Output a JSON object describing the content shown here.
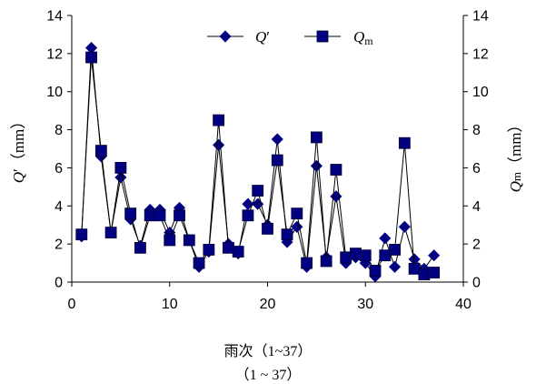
{
  "chart_data": {
    "type": "line",
    "x": [
      1,
      2,
      3,
      4,
      5,
      6,
      7,
      8,
      9,
      10,
      11,
      12,
      13,
      14,
      15,
      16,
      17,
      18,
      19,
      20,
      21,
      22,
      23,
      24,
      25,
      26,
      27,
      28,
      29,
      30,
      31,
      32,
      33,
      34,
      35,
      36,
      37
    ],
    "series": [
      {
        "name_prefix": "Q",
        "name_suffix": "′",
        "marker": "diamond",
        "values": [
          2.4,
          12.3,
          6.6,
          2.6,
          5.5,
          3.3,
          1.9,
          3.8,
          3.8,
          2.6,
          3.9,
          2.2,
          0.8,
          1.6,
          7.2,
          2.0,
          1.5,
          4.1,
          4.1,
          3.0,
          7.5,
          2.1,
          2.9,
          0.8,
          6.1,
          1.3,
          4.5,
          1.0,
          1.3,
          1.0,
          0.3,
          2.3,
          0.8,
          2.9,
          1.2,
          0.7,
          1.4
        ]
      },
      {
        "name_prefix": "Q",
        "name_suffix": "m",
        "marker": "square",
        "values": [
          2.5,
          11.8,
          6.9,
          2.6,
          6.0,
          3.6,
          1.8,
          3.5,
          3.5,
          2.2,
          3.5,
          2.2,
          1.0,
          1.7,
          8.5,
          1.8,
          1.6,
          3.5,
          4.8,
          2.8,
          6.4,
          2.5,
          3.6,
          1.0,
          7.6,
          1.1,
          5.9,
          1.3,
          1.5,
          1.4,
          0.6,
          1.4,
          1.7,
          7.3,
          0.7,
          0.4,
          0.5
        ]
      }
    ],
    "xlim": [
      0,
      40
    ],
    "ylim": [
      0,
      14
    ],
    "xticks": [
      0,
      10,
      20,
      30,
      40
    ],
    "yticks": [
      0,
      2,
      4,
      6,
      8,
      10,
      12,
      14
    ],
    "ylabel_left_symbol": "Q",
    "ylabel_left_prime": "′",
    "ylabel_left_unit": "（mm）",
    "ylabel_right_symbol": "Q",
    "ylabel_right_sub": "m",
    "ylabel_right_unit": "（mm）",
    "xlabel_line1": "雨次（1~37）",
    "xlabel_line2": "（1 ~ 37）",
    "legend_position": "top-center",
    "grid": false,
    "colors": {
      "series": "#000080",
      "line": "#000000"
    }
  }
}
